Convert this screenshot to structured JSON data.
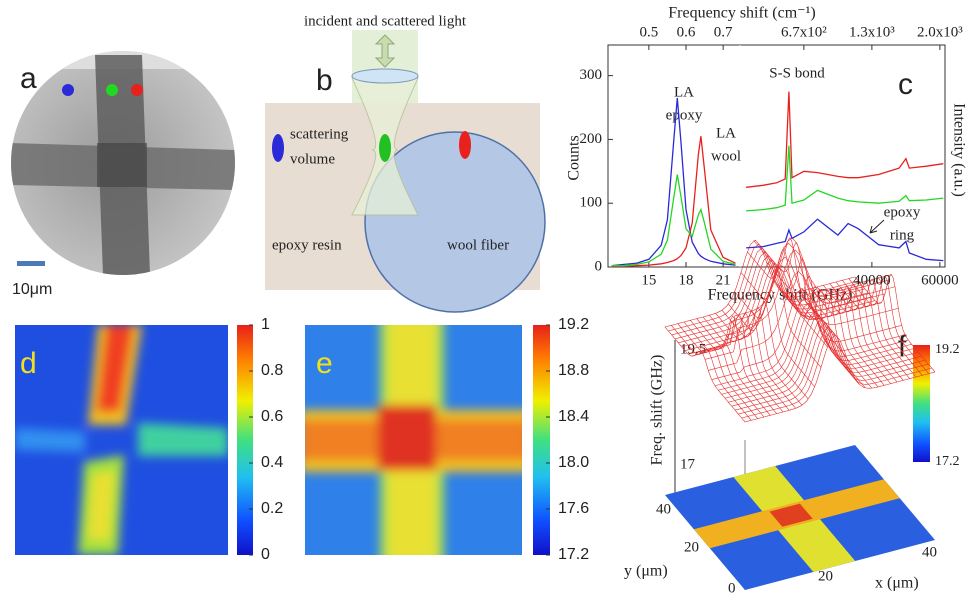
{
  "panels": {
    "a": {
      "label": "a",
      "scale_bar": "10μm"
    },
    "b": {
      "label": "b",
      "beam": "incident and scattered light",
      "volume": [
        "scattering",
        "volume"
      ],
      "epoxy": "epoxy resin",
      "fiber": "wool fiber"
    },
    "c": {
      "label": "c",
      "top_axis_title": "Frequency shift (cm⁻¹)",
      "x_axis_title": "Frequency shift (GHz)",
      "y_axis_title": "Counts",
      "y2_axis_title": "Intensity (a.u.)",
      "la_epoxy": [
        "LA",
        "epoxy"
      ],
      "la_wool": [
        "LA",
        "wool"
      ],
      "ss_bond": "S-S bond",
      "epoxy_ring": [
        "epoxy",
        "ring"
      ]
    },
    "d": {
      "label": "d",
      "colorbar_ticks": [
        1,
        0.8,
        0.6,
        0.4,
        0.2,
        0
      ]
    },
    "e": {
      "label": "e",
      "colorbar_ticks": [
        19.2,
        18.8,
        18.4,
        {
          "value": 18,
          "label": "18.0"
        },
        17.6,
        17.2
      ]
    },
    "f": {
      "label": "f",
      "z_axis_title": "Freq. shift (GHz)",
      "zticks": [
        19.5,
        17
      ],
      "colorbar_ticks": [
        19.2,
        17.2
      ],
      "x_axis_title": "x (μm)",
      "y_axis_title": "y (μm)",
      "xticks": [
        0,
        20,
        40
      ],
      "yticks": [
        20,
        40
      ]
    }
  },
  "chart_data": [
    {
      "type": "line",
      "xlim": [
        11.7,
        22.2
      ],
      "ylim": [
        0,
        348
      ],
      "xticks": [
        15,
        18,
        21
      ],
      "yticks": [
        0,
        100,
        200,
        300
      ],
      "x2ticks": [
        {
          "value": 15,
          "label": "0.5"
        },
        {
          "value": 18,
          "label": "0.6"
        },
        {
          "value": 21,
          "label": "0.7"
        }
      ],
      "x": [
        12,
        13,
        14,
        15,
        16,
        16.5,
        17,
        17.3,
        17.6,
        18,
        18.5,
        19,
        19.2,
        19.5,
        20,
        21,
        22
      ],
      "series": [
        {
          "color": "#2a2ad8",
          "values": [
            2,
            4,
            6,
            12,
            34,
            74,
            195,
            265,
            195,
            90,
            39,
            21,
            17,
            13,
            9,
            5,
            3
          ]
        },
        {
          "color": "#e8211d",
          "values": [
            1,
            1,
            2,
            3,
            5,
            7,
            10,
            13,
            18,
            30,
            69,
            177,
            205,
            151,
            58,
            15,
            6
          ]
        },
        {
          "color": "#22d822",
          "values": [
            2,
            2,
            4,
            8,
            20,
            42,
            107,
            145,
            110,
            60,
            48,
            82,
            90,
            68,
            28,
            9,
            4
          ]
        }
      ]
    },
    {
      "type": "line",
      "xlim": [
        1800,
        61500
      ],
      "ylim": [
        0,
        348
      ],
      "xticks": [
        40000,
        60000
      ],
      "x2ticks": [
        {
          "value": 20000,
          "label": "6.7x10²"
        },
        {
          "value": 40000,
          "label": "1.3x10³"
        },
        {
          "value": 60000,
          "label": "2.0x10³"
        }
      ],
      "x": [
        3000,
        8000,
        12000,
        14500,
        15600,
        16500,
        20000,
        24000,
        30000,
        33000,
        36000,
        42000,
        48000,
        50000,
        51000,
        56000,
        61000
      ],
      "series": [
        {
          "color": "#e8211d",
          "values": [
            125,
            128,
            132,
            138,
            275,
            140,
            150,
            148,
            142,
            140,
            140,
            145,
            155,
            170,
            155,
            158,
            162
          ]
        },
        {
          "color": "#22d822",
          "values": [
            88,
            90,
            93,
            97,
            190,
            100,
            105,
            120,
            108,
            104,
            102,
            100,
            103,
            112,
            104,
            105,
            108
          ]
        },
        {
          "color": "#2a2ad8",
          "values": [
            30,
            32,
            37,
            40,
            58,
            45,
            55,
            75,
            50,
            68,
            60,
            35,
            30,
            40,
            22,
            12,
            10
          ]
        }
      ]
    }
  ]
}
